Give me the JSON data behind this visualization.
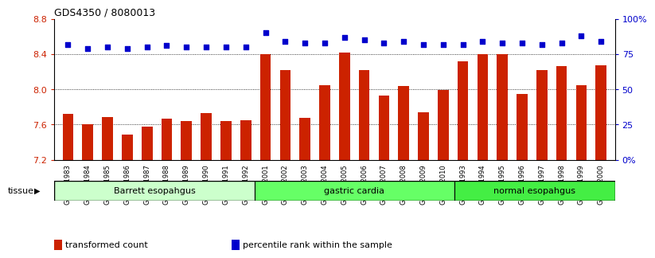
{
  "title": "GDS4350 / 8080013",
  "samples": [
    "GSM851983",
    "GSM851984",
    "GSM851985",
    "GSM851986",
    "GSM851987",
    "GSM851988",
    "GSM851989",
    "GSM851990",
    "GSM851991",
    "GSM851992",
    "GSM852001",
    "GSM852002",
    "GSM852003",
    "GSM852004",
    "GSM852005",
    "GSM852006",
    "GSM852007",
    "GSM852008",
    "GSM852009",
    "GSM852010",
    "GSM851993",
    "GSM851994",
    "GSM851995",
    "GSM851996",
    "GSM851997",
    "GSM851998",
    "GSM851999",
    "GSM852000"
  ],
  "bar_values": [
    7.72,
    7.6,
    7.69,
    7.49,
    7.58,
    7.67,
    7.64,
    7.73,
    7.64,
    7.65,
    8.4,
    8.22,
    7.68,
    8.05,
    8.42,
    8.22,
    7.93,
    8.04,
    7.74,
    7.99,
    8.32,
    8.4,
    8.4,
    7.95,
    8.22,
    8.26,
    8.05,
    8.27
  ],
  "dot_values": [
    82,
    79,
    80,
    79,
    80,
    81,
    80,
    80,
    80,
    80,
    90,
    84,
    83,
    83,
    87,
    85,
    83,
    84,
    82,
    82,
    82,
    84,
    83,
    83,
    82,
    83,
    88,
    84
  ],
  "groups": [
    {
      "label": "Barrett esopahgus",
      "start": 0,
      "end": 10,
      "color": "#ccffcc"
    },
    {
      "label": "gastric cardia",
      "start": 10,
      "end": 20,
      "color": "#66ff66"
    },
    {
      "label": "normal esopahgus",
      "start": 20,
      "end": 28,
      "color": "#44ee44"
    }
  ],
  "ylim_left": [
    7.2,
    8.8
  ],
  "ylim_right": [
    0,
    100
  ],
  "yticks_left": [
    7.2,
    7.6,
    8.0,
    8.4,
    8.8
  ],
  "yticks_right": [
    0,
    25,
    50,
    75,
    100
  ],
  "bar_color": "#cc2200",
  "dot_color": "#0000cc",
  "axis_color_left": "#cc2200",
  "axis_color_right": "#0000cc",
  "legend_items": [
    {
      "label": "transformed count",
      "color": "#cc2200"
    },
    {
      "label": "percentile rank within the sample",
      "color": "#0000cc"
    }
  ]
}
